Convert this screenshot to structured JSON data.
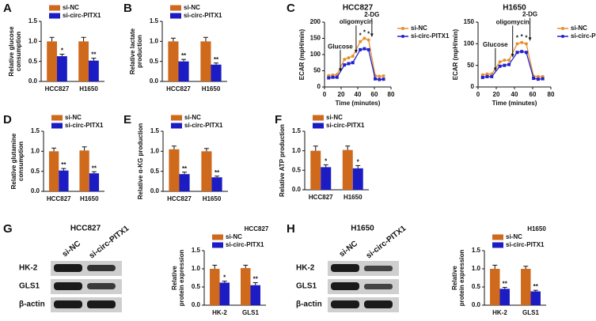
{
  "panels": [
    "A",
    "B",
    "C",
    "D",
    "E",
    "F",
    "G",
    "H"
  ],
  "blots": [
    {
      "title": "HCC827",
      "lanes": [
        "si-NC",
        "si-circ-PITX1"
      ],
      "rows": [
        "HK-2",
        "GLS1",
        "β-actin"
      ]
    },
    {
      "title": "H1650",
      "lanes": [
        "si-NC",
        "si-circ-PITX1"
      ],
      "rows": [
        "HK-2",
        "GLS1",
        "β-actin"
      ]
    }
  ],
  "chart_data": [
    {
      "type": "bar",
      "ylabel": [
        "Relative glucose",
        "consumption"
      ],
      "categories": [
        "HCC827",
        "H1650"
      ],
      "legend": "top",
      "ylim": [
        0,
        1.5
      ],
      "yticks": [
        {
          "value": 0,
          "label": "0.0"
        },
        {
          "value": 0.5,
          "label": "0.5"
        },
        {
          "value": 1,
          "label": "1.0"
        },
        {
          "value": 1.5,
          "label": "1.5"
        }
      ],
      "series": [
        {
          "name": "si-NC",
          "color": "#cf6a1d",
          "values": [
            1.0,
            1.0
          ],
          "errors": [
            0.1,
            0.1
          ]
        },
        {
          "name": "si-circ-PITX1",
          "color": "#1c1cc4",
          "values": [
            0.63,
            0.52
          ],
          "errors": [
            0.05,
            0.06
          ],
          "significance": [
            "*",
            "**"
          ]
        }
      ]
    },
    {
      "type": "bar",
      "ylabel": [
        "Relative lactate",
        "production"
      ],
      "categories": [
        "HCC827",
        "H1650"
      ],
      "legend": "top",
      "ylim": [
        0,
        1.5
      ],
      "yticks": [
        {
          "value": 0,
          "label": "0.0"
        },
        {
          "value": 0.5,
          "label": "0.5"
        },
        {
          "value": 1,
          "label": "1.0"
        },
        {
          "value": 1.5,
          "label": "1.5"
        }
      ],
      "series": [
        {
          "name": "si-NC",
          "color": "#cf6a1d",
          "values": [
            1.0,
            1.0
          ],
          "errors": [
            0.08,
            0.1
          ]
        },
        {
          "name": "si-circ-PITX1",
          "color": "#1c1cc4",
          "values": [
            0.5,
            0.42
          ],
          "errors": [
            0.05,
            0.04
          ],
          "significance": [
            "**",
            "**"
          ]
        }
      ]
    },
    {
      "type": "line",
      "title": "HCC827",
      "xlabel": "Time (minutes)",
      "ylabel": [
        "ECAR (mpH/min)"
      ],
      "legend": "right",
      "x": [
        5,
        10,
        15,
        24,
        29,
        34,
        43,
        48,
        53,
        61,
        66,
        71
      ],
      "xlim": [
        0,
        80
      ],
      "xticks": [
        0,
        20,
        40,
        60,
        80
      ],
      "ylim": [
        0,
        200
      ],
      "yticks": [
        0,
        50,
        100,
        150,
        200
      ],
      "annotations": [
        {
          "text": "Glucose",
          "x": 19,
          "y": 114
        },
        {
          "text": "oligomycin",
          "x": 38,
          "y": 190
        },
        {
          "text": "2-DG",
          "x": 57,
          "y": 212
        }
      ],
      "series": [
        {
          "name": "si-NC",
          "color": "#e8902a",
          "marker": "circle",
          "values": [
            35,
            37,
            38,
            85,
            90,
            95,
            140,
            150,
            145,
            35,
            33,
            34
          ],
          "significance": [
            null,
            null,
            null,
            null,
            null,
            null,
            "*",
            "*",
            "*",
            null,
            null,
            null
          ]
        },
        {
          "name": "si-circ-PITX1",
          "color": "#2222cc",
          "marker": "square",
          "values": [
            28,
            30,
            30,
            68,
            72,
            75,
            115,
            118,
            115,
            25,
            23,
            24
          ]
        }
      ]
    },
    {
      "type": "line",
      "title": "H1650",
      "xlabel": "Time (minutes)",
      "ylabel": [
        "ECAR (mpH/min)"
      ],
      "legend": "right",
      "x": [
        5,
        10,
        15,
        24,
        29,
        34,
        43,
        48,
        53,
        61,
        66,
        71
      ],
      "xlim": [
        0,
        80
      ],
      "xticks": [
        0,
        20,
        40,
        60,
        80
      ],
      "ylim": [
        0,
        150
      ],
      "yticks": [
        0,
        50,
        100,
        150
      ],
      "annotations": [
        {
          "text": "Glucose",
          "x": 19,
          "y": 90
        },
        {
          "text": "oligomycin",
          "x": 38,
          "y": 142
        },
        {
          "text": "2-DG",
          "x": 57,
          "y": 160
        }
      ],
      "series": [
        {
          "name": "si-NC",
          "color": "#e8902a",
          "marker": "circle",
          "values": [
            28,
            30,
            30,
            58,
            62,
            62,
            100,
            103,
            100,
            25,
            24,
            24
          ],
          "significance": [
            null,
            null,
            null,
            null,
            null,
            null,
            "*",
            "*",
            "*",
            null,
            null,
            null
          ]
        },
        {
          "name": "si-circ-PITX1",
          "color": "#2222cc",
          "marker": "square",
          "values": [
            22,
            24,
            24,
            48,
            50,
            52,
            80,
            82,
            80,
            20,
            18,
            19
          ]
        }
      ]
    },
    {
      "type": "bar",
      "ylabel": [
        "Relative glutamine",
        "consumption"
      ],
      "categories": [
        "HCC827",
        "H1650"
      ],
      "legend": "top",
      "ylim": [
        0,
        1.5
      ],
      "yticks": [
        {
          "value": 0,
          "label": "0.0"
        },
        {
          "value": 0.5,
          "label": "0.5"
        },
        {
          "value": 1,
          "label": "1.0"
        },
        {
          "value": 1.5,
          "label": "1.5"
        }
      ],
      "series": [
        {
          "name": "si-NC",
          "color": "#cf6a1d",
          "values": [
            1.0,
            1.02
          ],
          "errors": [
            0.08,
            0.09
          ]
        },
        {
          "name": "si-circ-PITX1",
          "color": "#1c1cc4",
          "values": [
            0.52,
            0.45
          ],
          "errors": [
            0.05,
            0.04
          ],
          "significance": [
            "**",
            "**"
          ]
        }
      ]
    },
    {
      "type": "bar",
      "ylabel": [
        "Relative α-KG production"
      ],
      "categories": [
        "HCC827",
        "H1650"
      ],
      "legend": "top",
      "ylim": [
        0,
        1.5
      ],
      "yticks": [
        {
          "value": 0,
          "label": "0.0"
        },
        {
          "value": 0.5,
          "label": "0.5"
        },
        {
          "value": 1,
          "label": "1.0"
        },
        {
          "value": 1.5,
          "label": "1.5"
        }
      ],
      "series": [
        {
          "name": "si-NC",
          "color": "#cf6a1d",
          "values": [
            1.05,
            1.0
          ],
          "errors": [
            0.08,
            0.07
          ]
        },
        {
          "name": "si-circ-PITX1",
          "color": "#1c1cc4",
          "values": [
            0.43,
            0.35
          ],
          "errors": [
            0.05,
            0.03
          ],
          "significance": [
            "**",
            "**"
          ]
        }
      ]
    },
    {
      "type": "bar",
      "ylabel": [
        "Relative ATP production"
      ],
      "categories": [
        "HCC827",
        "H1650"
      ],
      "legend": "top",
      "ylim": [
        0,
        1.5
      ],
      "yticks": [
        {
          "value": 0,
          "label": "0.0"
        },
        {
          "value": 0.5,
          "label": "0.5"
        },
        {
          "value": 1,
          "label": "1.0"
        },
        {
          "value": 1.5,
          "label": "1.5"
        }
      ],
      "series": [
        {
          "name": "si-NC",
          "color": "#cf6a1d",
          "values": [
            1.0,
            1.02
          ],
          "errors": [
            0.12,
            0.1
          ]
        },
        {
          "name": "si-circ-PITX1",
          "color": "#1c1cc4",
          "values": [
            0.58,
            0.55
          ],
          "errors": [
            0.06,
            0.07
          ],
          "significance": [
            "*",
            "*"
          ]
        }
      ]
    },
    {
      "type": "bar",
      "title": "HCC827",
      "ylabel": [
        "Relative",
        "protein expression"
      ],
      "categories": [
        "HK-2",
        "GLS1"
      ],
      "legend": "top",
      "ylim": [
        0,
        1.5
      ],
      "yticks": [
        {
          "value": 0,
          "label": "0.0"
        },
        {
          "value": 0.5,
          "label": "0.5"
        },
        {
          "value": 1,
          "label": "1.0"
        },
        {
          "value": 1.5,
          "label": "1.5"
        }
      ],
      "series": [
        {
          "name": "si-NC",
          "color": "#cf6a1d",
          "values": [
            1.0,
            1.02
          ],
          "errors": [
            0.1,
            0.08
          ]
        },
        {
          "name": "si-circ-PITX1",
          "color": "#1c1cc4",
          "values": [
            0.62,
            0.55
          ],
          "errors": [
            0.04,
            0.07
          ],
          "significance": [
            "*",
            "**"
          ]
        }
      ]
    },
    {
      "type": "bar",
      "title": "H1650",
      "ylabel": [
        "Relative",
        "protein expression"
      ],
      "categories": [
        "HK-2",
        "GLS1"
      ],
      "legend": "top",
      "ylim": [
        0,
        1.5
      ],
      "yticks": [
        {
          "value": 0,
          "label": "0.0"
        },
        {
          "value": 0.5,
          "label": "0.5"
        },
        {
          "value": 1,
          "label": "1.0"
        },
        {
          "value": 1.5,
          "label": "1.5"
        }
      ],
      "series": [
        {
          "name": "si-NC",
          "color": "#cf6a1d",
          "values": [
            1.0,
            1.0
          ],
          "errors": [
            0.1,
            0.07
          ]
        },
        {
          "name": "si-circ-PITX1",
          "color": "#1c1cc4",
          "values": [
            0.45,
            0.38
          ],
          "errors": [
            0.04,
            0.03
          ],
          "significance": [
            "**",
            "**"
          ]
        }
      ]
    }
  ]
}
